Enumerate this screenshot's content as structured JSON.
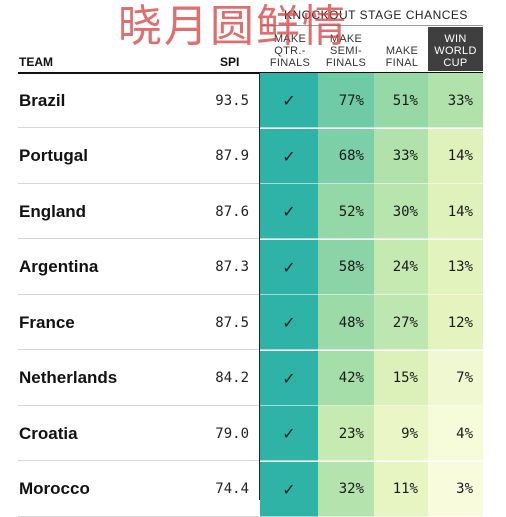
{
  "watermark": "晓月圆鲜情",
  "header": {
    "group_title": "KNOCKOUT STAGE CHANCES",
    "team_label": "TEAM",
    "spi_label": "SPI",
    "columns": [
      "MAKE\nQTR.-\nFINALS",
      "MAKE\nSEMI-\nFINALS",
      "MAKE\nFINAL",
      "WIN\nWORLD\nCUP"
    ]
  },
  "colors": {
    "header_dark": "#3f3f3f",
    "check_col": "#2fb3a6",
    "scale": [
      "#2fb3a6",
      "#5cc6a8",
      "#86d3a6",
      "#b2e2ac",
      "#d7efb7",
      "#eef8cf",
      "#f8fcdc"
    ]
  },
  "rows": [
    {
      "team": "Brazil",
      "spi": "93.5",
      "qtr": "✓",
      "semi": "77%",
      "final": "51%",
      "win": "33%",
      "semi_c": "#6fcba6",
      "final_c": "#96d9a6",
      "win_c": "#b2e2ac"
    },
    {
      "team": "Portugal",
      "spi": "87.9",
      "qtr": "✓",
      "semi": "68%",
      "final": "33%",
      "win": "14%",
      "semi_c": "#7ccfa6",
      "final_c": "#b2e2ac",
      "win_c": "#dff2bb"
    },
    {
      "team": "England",
      "spi": "87.6",
      "qtr": "✓",
      "semi": "52%",
      "final": "30%",
      "win": "14%",
      "semi_c": "#95d8a7",
      "final_c": "#b8e4ae",
      "win_c": "#dff2bb"
    },
    {
      "team": "Argentina",
      "spi": "87.3",
      "qtr": "✓",
      "semi": "58%",
      "final": "24%",
      "win": "13%",
      "semi_c": "#8bd4a7",
      "final_c": "#c4e9b1",
      "win_c": "#e2f3bd"
    },
    {
      "team": "France",
      "spi": "87.5",
      "qtr": "✓",
      "semi": "48%",
      "final": "27%",
      "win": "12%",
      "semi_c": "#9cdaa8",
      "final_c": "#bee6b0",
      "win_c": "#e5f4bf"
    },
    {
      "team": "Netherlands",
      "spi": "84.2",
      "qtr": "✓",
      "semi": "42%",
      "final": "15%",
      "win": "7%",
      "semi_c": "#a6deaa",
      "final_c": "#dcf1ba",
      "win_c": "#eff8d0"
    },
    {
      "team": "Croatia",
      "spi": "79.0",
      "qtr": "✓",
      "semi": "23%",
      "final": "9%",
      "win": "4%",
      "semi_c": "#c6eab2",
      "final_c": "#eaf6c6",
      "win_c": "#f6fbd9"
    },
    {
      "team": "Morocco",
      "spi": "74.4",
      "qtr": "✓",
      "semi": "32%",
      "final": "11%",
      "win": "3%",
      "semi_c": "#b5e3ad",
      "final_c": "#e6f5c2",
      "win_c": "#f8fcdc"
    }
  ]
}
